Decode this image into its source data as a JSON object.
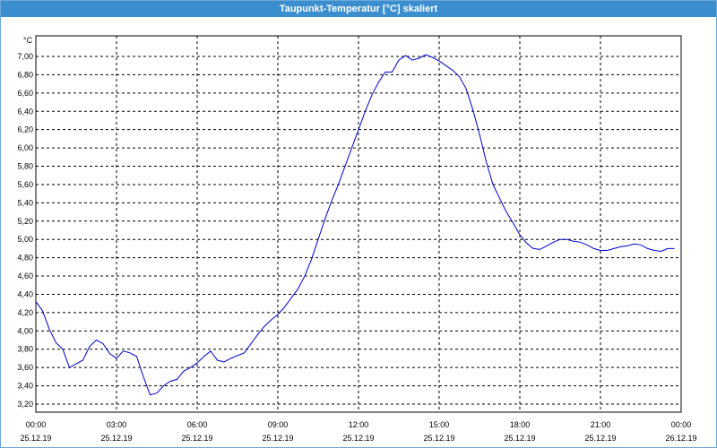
{
  "window": {
    "title": "Taupunkt-Temperatur [°C] skaliert"
  },
  "chart_data": {
    "type": "line",
    "title": "Taupunkt-Temperatur [°C] skaliert",
    "y_unit": "°C",
    "ylim": [
      3.2,
      7.0
    ],
    "y_ticks": [
      "7,00",
      "6,80",
      "6,60",
      "6,40",
      "6,20",
      "6,00",
      "5,80",
      "5,60",
      "5,40",
      "5,20",
      "5,00",
      "4,80",
      "4,60",
      "4,40",
      "4,20",
      "4,00",
      "3,80",
      "3,60",
      "3,40",
      "3,20"
    ],
    "x_ticks": [
      {
        "time": "00:00",
        "date": "25.12.19"
      },
      {
        "time": "03:00",
        "date": "25.12.19"
      },
      {
        "time": "06:00",
        "date": "25.12.19"
      },
      {
        "time": "09:00",
        "date": "25.12.19"
      },
      {
        "time": "12:00",
        "date": "25.12.19"
      },
      {
        "time": "15:00",
        "date": "25.12.19"
      },
      {
        "time": "18:00",
        "date": "25.12.19"
      },
      {
        "time": "21:00",
        "date": "25.12.19"
      },
      {
        "time": "00:00",
        "date": "26.12.19"
      }
    ],
    "grid": true,
    "line_color": "#0000cc",
    "series": [
      {
        "x": [
          0,
          0.25,
          0.5,
          0.75,
          1,
          1.25,
          1.5,
          1.75,
          2,
          2.25,
          2.5,
          2.75,
          3,
          3.25,
          3.5,
          3.75,
          4,
          4.25,
          4.5,
          4.75,
          5,
          5.25,
          5.5,
          5.75,
          6,
          6.25,
          6.5,
          6.75,
          7,
          7.25,
          7.5,
          7.75,
          8,
          8.25,
          8.5,
          8.75,
          9,
          9.25,
          9.5,
          9.75,
          10,
          10.25,
          10.5,
          10.75,
          11,
          11.25,
          11.5,
          11.75,
          12,
          12.25,
          12.5,
          12.75,
          13,
          13.25,
          13.5,
          13.75,
          14,
          14.25,
          14.5,
          14.75,
          15,
          15.25,
          15.5,
          15.75,
          16,
          16.25,
          16.5,
          16.75,
          17,
          17.25,
          17.5,
          17.75,
          18,
          18.25,
          18.5,
          18.75,
          19,
          19.25,
          19.5,
          19.75,
          20,
          20.25,
          20.5,
          20.75,
          21,
          21.25,
          21.5,
          21.75,
          22,
          22.25,
          22.5,
          22.75,
          23,
          23.25,
          23.5,
          23.75
        ],
        "values": [
          4.32,
          4.22,
          4.02,
          3.87,
          3.8,
          3.6,
          3.64,
          3.68,
          3.83,
          3.9,
          3.86,
          3.75,
          3.7,
          3.78,
          3.76,
          3.72,
          3.5,
          3.3,
          3.32,
          3.4,
          3.45,
          3.47,
          3.56,
          3.6,
          3.65,
          3.72,
          3.78,
          3.68,
          3.66,
          3.7,
          3.73,
          3.76,
          3.86,
          3.96,
          4.05,
          4.12,
          4.18,
          4.26,
          4.36,
          4.46,
          4.6,
          4.78,
          5.0,
          5.22,
          5.42,
          5.6,
          5.8,
          6.0,
          6.2,
          6.4,
          6.58,
          6.72,
          6.83,
          6.83,
          6.96,
          7.01,
          6.96,
          6.98,
          7.02,
          6.99,
          6.95,
          6.9,
          6.85,
          6.78,
          6.65,
          6.42,
          6.15,
          5.85,
          5.6,
          5.45,
          5.3,
          5.18,
          5.05,
          4.96,
          4.9,
          4.89,
          4.93,
          4.97,
          5.0,
          5.0,
          4.98,
          4.97,
          4.94,
          4.9,
          4.88,
          4.88,
          4.9,
          4.92,
          4.93,
          4.95,
          4.94,
          4.9,
          4.88,
          4.87,
          4.9,
          4.9
        ]
      }
    ]
  }
}
